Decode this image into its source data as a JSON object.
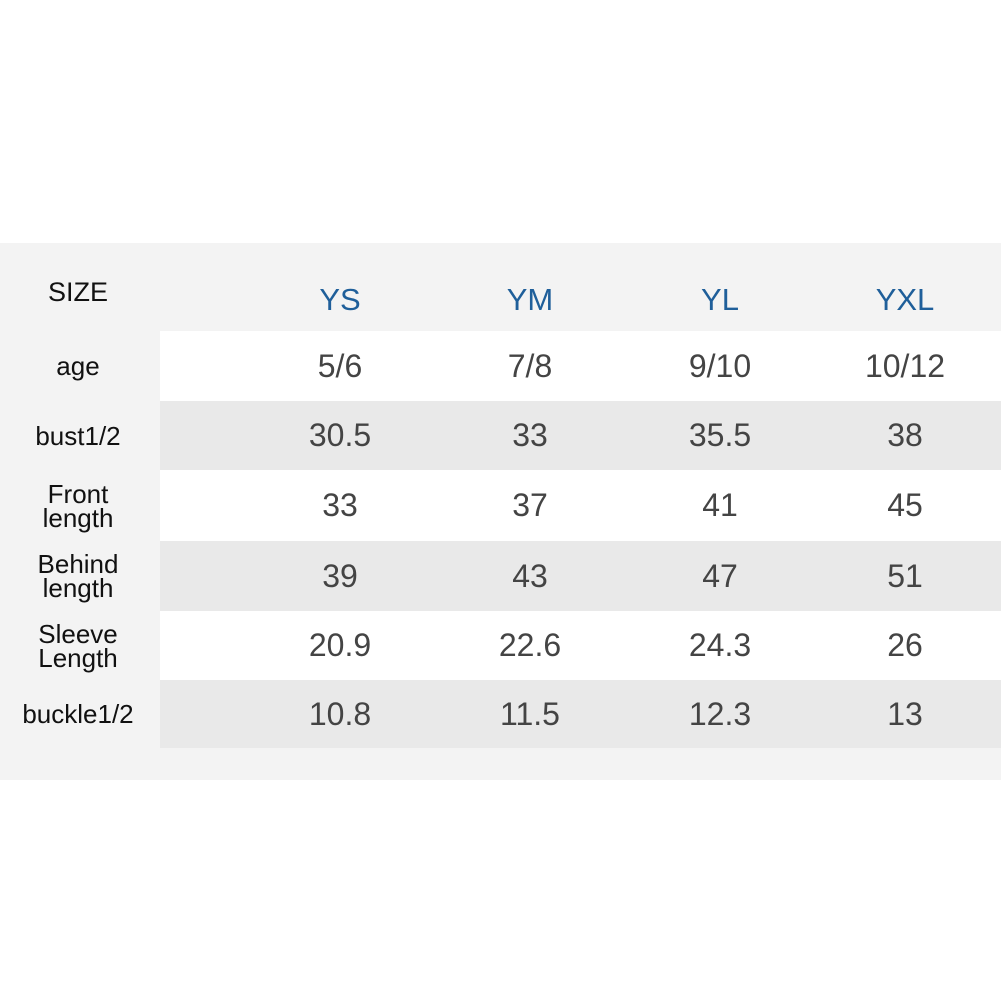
{
  "table": {
    "corner": "SIZE",
    "columns": [
      "YS",
      "YM",
      "YL",
      "YXL"
    ],
    "rows": [
      {
        "label": "age",
        "values": [
          "5/6",
          "7/8",
          "9/10",
          "10/12"
        ]
      },
      {
        "label": "bust1/2",
        "values": [
          30.5,
          33,
          35.5,
          38
        ]
      },
      {
        "label": "Front length",
        "values": [
          33,
          37,
          41,
          45
        ]
      },
      {
        "label": "Behind length",
        "values": [
          39,
          43,
          47,
          51
        ]
      },
      {
        "label": "Sleeve Length",
        "values": [
          20.9,
          22.6,
          24.3,
          26
        ]
      },
      {
        "label": "buckle1/2",
        "values": [
          10.8,
          11.5,
          12.3,
          13
        ]
      }
    ]
  }
}
